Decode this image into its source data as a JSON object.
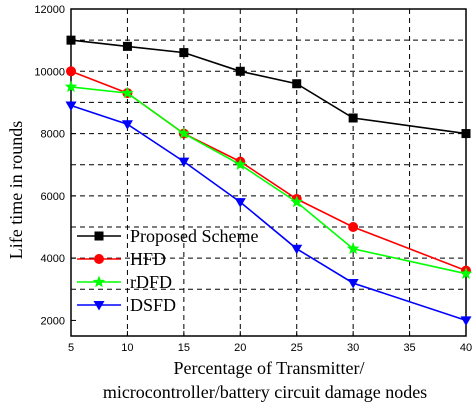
{
  "chart_data": {
    "type": "line",
    "xlabel": [
      "Percentage of Transmitter/",
      "microcontroller/battery circuit damage nodes"
    ],
    "ylabel": "Life time in rounds",
    "xlim": [
      5,
      40
    ],
    "ylim": [
      1500,
      12000
    ],
    "x_ticks": [
      5,
      10,
      15,
      20,
      25,
      30,
      35,
      40
    ],
    "y_ticks": [
      2000,
      4000,
      6000,
      8000,
      10000,
      12000
    ],
    "grid": "dashed",
    "legend_position": "bottom-left",
    "series": [
      {
        "name": "Proposed Scheme",
        "color": "#000000",
        "marker": "square",
        "x": [
          5,
          10,
          15,
          20,
          25,
          30,
          40
        ],
        "values": [
          11000,
          10800,
          10600,
          10000,
          9600,
          8500,
          8000
        ]
      },
      {
        "name": "HFD",
        "color": "#ff0000",
        "marker": "circle",
        "x": [
          5,
          10,
          15,
          20,
          25,
          30,
          40
        ],
        "values": [
          10000,
          9300,
          8000,
          7100,
          5900,
          5000,
          3600
        ]
      },
      {
        "name": "rDFD",
        "color": "#00ff00",
        "marker": "star",
        "x": [
          5,
          10,
          15,
          20,
          25,
          30,
          40
        ],
        "values": [
          9500,
          9300,
          8000,
          7000,
          5800,
          4300,
          3500
        ]
      },
      {
        "name": "DSFD",
        "color": "#0000ff",
        "marker": "triangle-down",
        "x": [
          5,
          10,
          15,
          20,
          25,
          30,
          40
        ],
        "values": [
          8900,
          8300,
          7100,
          5800,
          4300,
          3200,
          2000
        ]
      }
    ]
  }
}
